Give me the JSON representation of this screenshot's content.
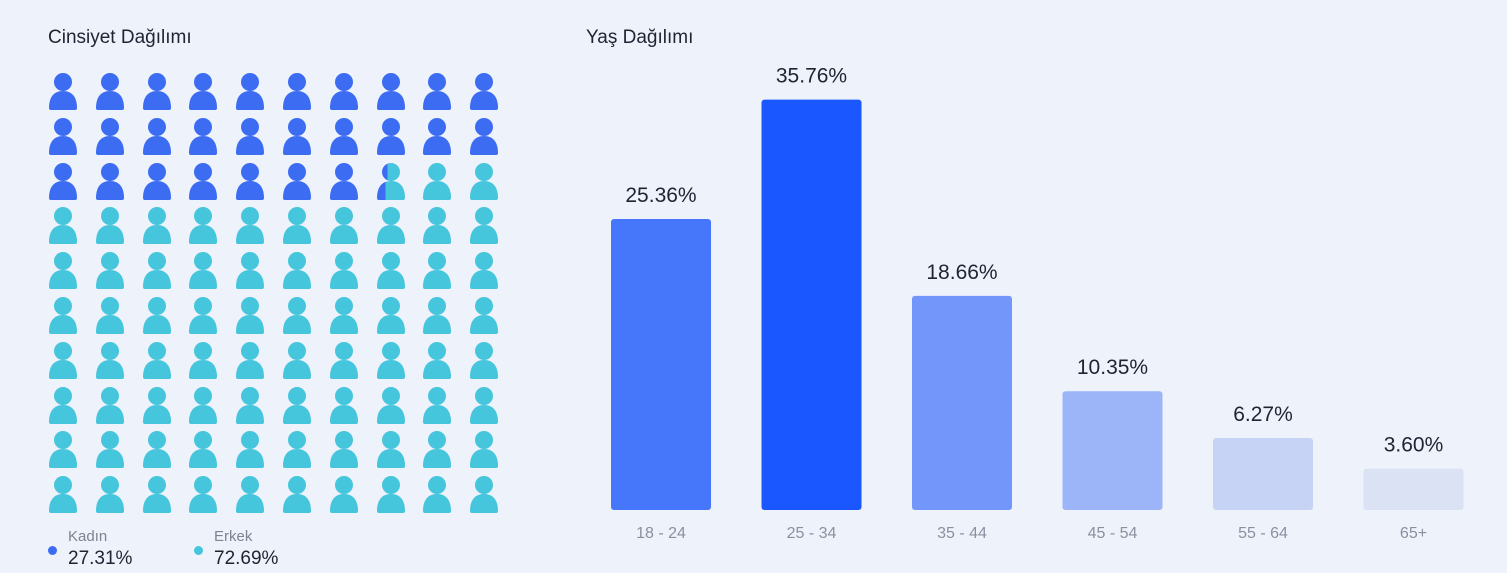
{
  "gender": {
    "title": "Cinsiyet Dağılımı",
    "grid": {
      "rows": 10,
      "cols": 10
    },
    "legend": [
      {
        "label": "Kadın",
        "value": "27.31%"
      },
      {
        "label": "Erkek",
        "value": "72.69%"
      }
    ]
  },
  "age": {
    "title": "Yaş Dağılımı"
  },
  "chart_data": [
    {
      "type": "pictograph",
      "categories": [
        "Kadın",
        "Erkek"
      ],
      "values": [
        27.31,
        72.69
      ],
      "units_total": 100,
      "colors": [
        "#3c6cf2",
        "#46c6dc"
      ]
    },
    {
      "type": "bar",
      "categories": [
        "18 - 24",
        "25 - 34",
        "35 - 44",
        "45 - 54",
        "55 - 64",
        "65+"
      ],
      "values": [
        25.36,
        35.76,
        18.66,
        10.35,
        6.27,
        3.6
      ],
      "data_labels": [
        "25.36%",
        "35.76%",
        "18.66%",
        "10.35%",
        "6.27%",
        "3.60%"
      ],
      "colors": [
        "#4677fb",
        "#1b57ff",
        "#7396fb",
        "#9cb5f9",
        "#c7d3f4",
        "#dbe2f4"
      ],
      "ylim": [
        0,
        40
      ],
      "grid": false
    }
  ]
}
